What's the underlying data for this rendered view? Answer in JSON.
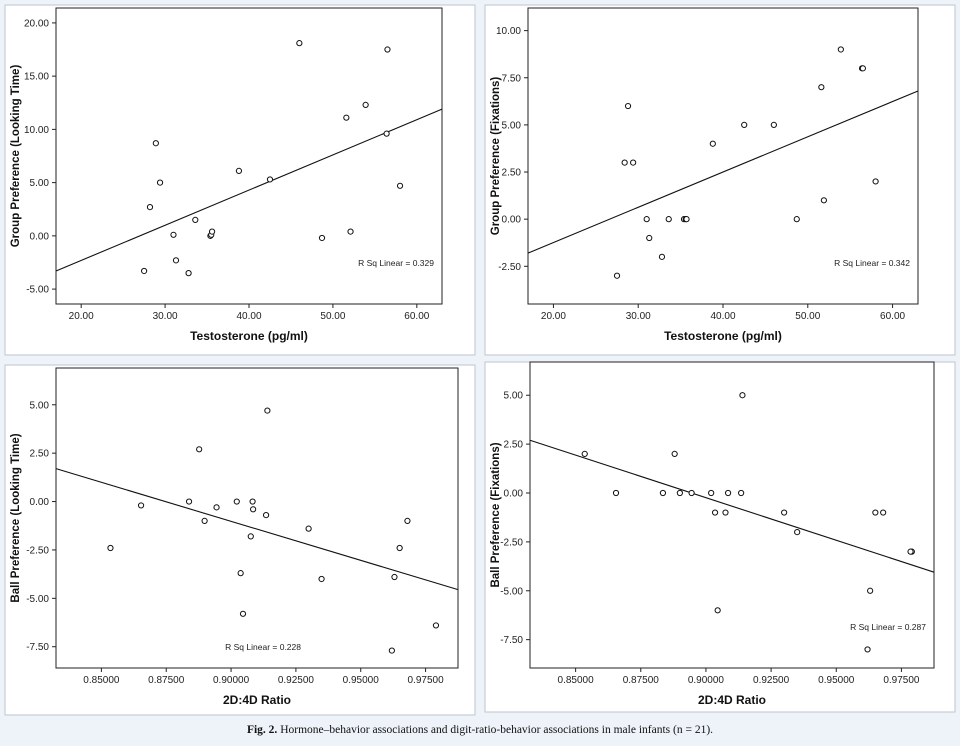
{
  "caption": {
    "label": "Fig. 2.",
    "text": "Hormone–behavior associations and digit-ratio-behavior associations in male infants (n = 21)."
  },
  "chart_data": [
    {
      "type": "scatter",
      "ylabel": "Group Preference (Looking Time)",
      "xlabel": "Testosterone (pg/ml)",
      "xlim": [
        17,
        63
      ],
      "ylim": [
        -6.4,
        21.4
      ],
      "xticks": [
        "20.00",
        "30.00",
        "40.00",
        "50.00",
        "60.00"
      ],
      "xtick_values": [
        20,
        30,
        40,
        50,
        60
      ],
      "yticks": [
        "-5.00",
        "0.00",
        "5.00",
        "10.00",
        "15.00",
        "20.00"
      ],
      "ytick_values": [
        -5,
        0,
        5,
        10,
        15,
        20
      ],
      "fit_line": {
        "x": [
          17,
          63
        ],
        "y": [
          -3.3,
          11.9
        ]
      },
      "r_squared_label": "R Sq Linear = 0.329",
      "points": [
        [
          27.5,
          -3.3
        ],
        [
          28.2,
          2.7
        ],
        [
          28.9,
          8.7
        ],
        [
          29.4,
          5.0
        ],
        [
          31.0,
          0.1
        ],
        [
          31.3,
          -2.3
        ],
        [
          32.8,
          -3.5
        ],
        [
          33.6,
          1.5
        ],
        [
          35.4,
          0.0
        ],
        [
          35.5,
          0.1
        ],
        [
          35.6,
          0.4
        ],
        [
          38.8,
          6.1
        ],
        [
          42.5,
          5.3
        ],
        [
          46.0,
          18.1
        ],
        [
          48.7,
          -0.2
        ],
        [
          51.6,
          11.1
        ],
        [
          52.1,
          0.4
        ],
        [
          53.9,
          12.3
        ],
        [
          56.4,
          9.6
        ],
        [
          56.5,
          17.5
        ],
        [
          58.0,
          4.7
        ]
      ]
    },
    {
      "type": "scatter",
      "ylabel": "Group Preference (Fixations)",
      "xlabel": "Testosterone (pg/ml)",
      "xlim": [
        17,
        63
      ],
      "ylim": [
        -4.5,
        11.2
      ],
      "xticks": [
        "20.00",
        "30.00",
        "40.00",
        "50.00",
        "60.00"
      ],
      "xtick_values": [
        20,
        30,
        40,
        50,
        60
      ],
      "yticks": [
        "-2.50",
        "0.00",
        "2.50",
        "5.00",
        "7.50",
        "10.00"
      ],
      "ytick_values": [
        -2.5,
        0,
        2.5,
        5,
        7.5,
        10
      ],
      "fit_line": {
        "x": [
          17,
          63
        ],
        "y": [
          -1.8,
          6.8
        ]
      },
      "r_squared_label": "R Sq Linear = 0.342",
      "points": [
        [
          27.5,
          -3.0
        ],
        [
          28.4,
          3.0
        ],
        [
          28.8,
          6.0
        ],
        [
          29.4,
          3.0
        ],
        [
          31.0,
          0.0
        ],
        [
          31.3,
          -1.0
        ],
        [
          32.8,
          -2.0
        ],
        [
          33.6,
          0.0
        ],
        [
          35.4,
          0.0
        ],
        [
          35.6,
          0.0
        ],
        [
          35.7,
          0.0
        ],
        [
          38.8,
          4.0
        ],
        [
          42.5,
          5.0
        ],
        [
          46.0,
          5.0
        ],
        [
          48.7,
          0.0
        ],
        [
          51.6,
          7.0
        ],
        [
          51.9,
          1.0
        ],
        [
          53.9,
          9.0
        ],
        [
          56.4,
          8.0
        ],
        [
          56.5,
          8.0
        ],
        [
          58.0,
          2.0
        ]
      ]
    },
    {
      "type": "scatter",
      "ylabel": "Ball Preference (Looking Time)",
      "xlabel": "2D:4D Ratio",
      "xlim": [
        0.8325,
        0.9875
      ],
      "ylim": [
        -8.6,
        6.9
      ],
      "xticks": [
        "0.85000",
        "0.87500",
        "0.90000",
        "0.92500",
        "0.95000",
        "0.97500"
      ],
      "xtick_values": [
        0.85,
        0.875,
        0.9,
        0.925,
        0.95,
        0.975
      ],
      "yticks": [
        "-7.50",
        "-5.00",
        "-2.50",
        "0.00",
        "2.50",
        "5.00"
      ],
      "ytick_values": [
        -7.5,
        -5,
        -2.5,
        0,
        2.5,
        5
      ],
      "fit_line": {
        "x": [
          0.8325,
          0.9875
        ],
        "y": [
          1.7,
          -4.55
        ]
      },
      "r_squared_label": "R Sq Linear = 0.228",
      "points": [
        [
          0.8535,
          -2.4
        ],
        [
          0.8653,
          -0.2
        ],
        [
          0.8838,
          0.0
        ],
        [
          0.8877,
          2.7
        ],
        [
          0.8898,
          -1.0
        ],
        [
          0.8944,
          -0.3
        ],
        [
          0.9022,
          0.0
        ],
        [
          0.9037,
          -3.7
        ],
        [
          0.9046,
          -5.8
        ],
        [
          0.9076,
          -1.8
        ],
        [
          0.9083,
          0.0
        ],
        [
          0.9085,
          -0.4
        ],
        [
          0.9135,
          -0.7
        ],
        [
          0.914,
          4.7
        ],
        [
          0.9299,
          -1.4
        ],
        [
          0.9349,
          -4.0
        ],
        [
          0.962,
          -7.7
        ],
        [
          0.963,
          -3.9
        ],
        [
          0.965,
          -2.4
        ],
        [
          0.968,
          -1.0
        ],
        [
          0.979,
          -6.4
        ]
      ]
    },
    {
      "type": "scatter",
      "ylabel": "Ball Preference (Fixations)",
      "xlabel": "2D:4D Ratio",
      "xlim": [
        0.8325,
        0.9875
      ],
      "ylim": [
        -8.95,
        6.7
      ],
      "xticks": [
        "0.85000",
        "0.87500",
        "0.90000",
        "0.92500",
        "0.95000",
        "0.97500"
      ],
      "xtick_values": [
        0.85,
        0.875,
        0.9,
        0.925,
        0.95,
        0.975
      ],
      "yticks": [
        "-7.50",
        "-5.00",
        "-2.50",
        "0.00",
        "2.50",
        "5.00"
      ],
      "ytick_values": [
        -7.5,
        -5,
        -2.5,
        0,
        2.5,
        5
      ],
      "fit_line": {
        "x": [
          0.8325,
          0.9875
        ],
        "y": [
          2.7,
          -4.05
        ]
      },
      "r_squared_label": "R Sq Linear = 0.287",
      "points": [
        [
          0.8535,
          2.0
        ],
        [
          0.8655,
          0.0
        ],
        [
          0.8835,
          0.0
        ],
        [
          0.888,
          2.0
        ],
        [
          0.89,
          0.0
        ],
        [
          0.8945,
          0.0
        ],
        [
          0.902,
          0.0
        ],
        [
          0.9035,
          -1.0
        ],
        [
          0.9045,
          -6.0
        ],
        [
          0.9075,
          -1.0
        ],
        [
          0.9085,
          0.0
        ],
        [
          0.9135,
          0.0
        ],
        [
          0.914,
          5.0
        ],
        [
          0.93,
          -1.0
        ],
        [
          0.935,
          -2.0
        ],
        [
          0.962,
          -8.0
        ],
        [
          0.963,
          -5.0
        ],
        [
          0.965,
          -1.0
        ],
        [
          0.968,
          -1.0
        ],
        [
          0.979,
          -3.0
        ],
        [
          0.9785,
          -3.0
        ]
      ]
    }
  ]
}
